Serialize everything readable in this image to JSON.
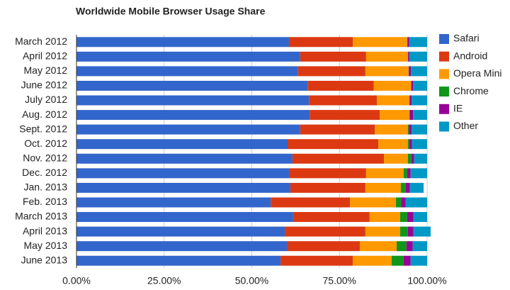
{
  "chart_data": {
    "type": "stacked_bar_horizontal",
    "title": "Worldwide Mobile Browser Usage Share",
    "categories": [
      "March 2012",
      "April 2012",
      "May 2012",
      "June 2012",
      "July 2012",
      "Aug. 2012",
      "Sept. 2012",
      "Oct. 2012",
      "Nov. 2012",
      "Dec. 2012",
      "Jan. 2013",
      "Feb. 2013",
      "March 2013",
      "April 2013",
      "May 2013",
      "June 2013"
    ],
    "series": [
      {
        "name": "Safari",
        "color": "#3366cc",
        "values": [
          60.6,
          63.8,
          63.2,
          65.9,
          66.3,
          66.5,
          63.8,
          60.2,
          61.6,
          60.6,
          61.0,
          55.4,
          61.8,
          59.4,
          60.0,
          58.2
        ]
      },
      {
        "name": "Android",
        "color": "#dc3912",
        "values": [
          18.2,
          18.8,
          19.2,
          18.9,
          19.4,
          20.0,
          21.3,
          25.9,
          26.1,
          22.0,
          21.4,
          22.6,
          21.8,
          23.0,
          20.8,
          20.6
        ]
      },
      {
        "name": "Opera Mini",
        "color": "#ff9900",
        "values": [
          15.5,
          11.9,
          12.3,
          10.6,
          9.2,
          8.4,
          9.4,
          8.4,
          6.8,
          10.7,
          10.1,
          13.1,
          8.7,
          9.9,
          10.5,
          11.1
        ]
      },
      {
        "name": "Chrome",
        "color": "#109618",
        "values": [
          0.1,
          0.1,
          0.1,
          0.1,
          0.1,
          0.2,
          0.3,
          0.4,
          1.0,
          1.0,
          1.4,
          1.5,
          2.0,
          2.2,
          2.8,
          3.4
        ]
      },
      {
        "name": "IE",
        "color": "#990099",
        "values": [
          0.5,
          0.4,
          0.6,
          0.5,
          0.6,
          0.9,
          0.8,
          0.8,
          0.8,
          1.0,
          1.2,
          1.3,
          1.8,
          1.6,
          1.8,
          2.0
        ]
      },
      {
        "name": "Other",
        "color": "#0099c6",
        "values": [
          5.1,
          5.0,
          4.6,
          4.0,
          4.4,
          4.0,
          4.4,
          4.3,
          3.7,
          4.7,
          3.9,
          6.1,
          3.9,
          4.9,
          4.1,
          4.7
        ]
      }
    ],
    "xlim": [
      0,
      100
    ],
    "xticks": [
      {
        "value": 0,
        "label": "0.00%"
      },
      {
        "value": 25,
        "label": "25.00%"
      },
      {
        "value": 50,
        "label": "50.00%"
      },
      {
        "value": 75,
        "label": "75.00%"
      },
      {
        "value": 100,
        "label": "100.00%"
      }
    ],
    "grid": true,
    "legend": "right"
  }
}
